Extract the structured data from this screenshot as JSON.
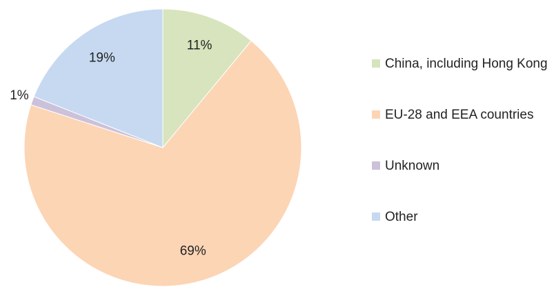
{
  "chart_data": {
    "type": "pie",
    "categories": [
      "China, including Hong Kong",
      "EU-28 and EEA countries",
      "Unknown",
      "Other"
    ],
    "values": [
      11,
      69,
      1,
      19
    ],
    "value_labels": [
      "11%",
      "69%",
      "1%",
      "19%"
    ],
    "colors": [
      "#d7e4bd",
      "#fcd5b5",
      "#ccc1da",
      "#c6d9f1"
    ],
    "legend": "right"
  }
}
